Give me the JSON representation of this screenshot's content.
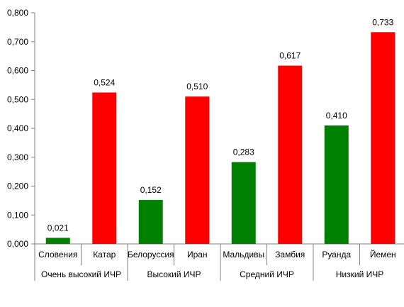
{
  "chart_data": {
    "type": "bar",
    "title": "",
    "xlabel": "",
    "ylabel": "",
    "ylim": [
      0,
      0.8
    ],
    "yticks": [
      0,
      0.1,
      0.2,
      0.3,
      0.4,
      0.5,
      0.6,
      0.7,
      0.8
    ],
    "ytick_labels": [
      "0,000",
      "0,100",
      "0,200",
      "0,300",
      "0,400",
      "0,500",
      "0,600",
      "0,700",
      "0,800"
    ],
    "grid": false,
    "legend": "none",
    "categories": [
      "Словения",
      "Катар",
      "Белоруссия",
      "Иран",
      "Мальдивы",
      "Замбия",
      "Руанда",
      "Йемен"
    ],
    "values": [
      0.021,
      0.524,
      0.152,
      0.51,
      0.283,
      0.617,
      0.41,
      0.733
    ],
    "data_labels": [
      "0,021",
      "0,524",
      "0,152",
      "0,510",
      "0,283",
      "0,617",
      "0,410",
      "0,733"
    ],
    "bar_colors": [
      "#008000",
      "#ff0000",
      "#008000",
      "#ff0000",
      "#008000",
      "#ff0000",
      "#008000",
      "#ff0000"
    ],
    "groups": [
      {
        "label": "Очень высокий ИЧР",
        "categories": [
          "Словения",
          "Катар"
        ]
      },
      {
        "label": "Высокий ИЧР",
        "categories": [
          "Белоруссия",
          "Иран"
        ]
      },
      {
        "label": "Средний  ИЧР",
        "categories": [
          "Мальдивы",
          "Замбия"
        ]
      },
      {
        "label": "Низкий ИЧР",
        "categories": [
          "Руанда",
          "Йемен"
        ]
      }
    ],
    "colors": {
      "axis": "#7f7f7f",
      "text": "#000000"
    }
  }
}
